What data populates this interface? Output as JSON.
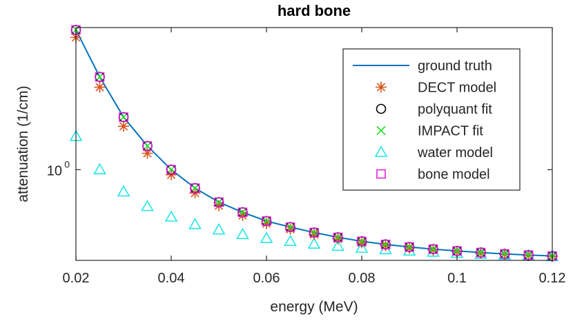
{
  "chart_data": {
    "type": "line",
    "title": "hard bone",
    "xlabel": "energy (MeV)",
    "ylabel": "attenuation (1/cm)",
    "xlim": [
      0.02,
      0.12
    ],
    "ylim": [
      0.4,
      4.2
    ],
    "yscale": "log",
    "grid": false,
    "legend_position": "top-right",
    "x_ticks": [
      0.02,
      0.04,
      0.06,
      0.08,
      0.1,
      0.12
    ],
    "x_tick_labels": [
      "0.02",
      "0.04",
      "0.06",
      "0.08",
      "0.1",
      "0.12"
    ],
    "y_ticks": [
      1
    ],
    "y_tick_labels": [
      {
        "base": "10",
        "exp": "0"
      }
    ],
    "x": [
      0.02,
      0.025,
      0.03,
      0.035,
      0.04,
      0.045,
      0.05,
      0.055,
      0.06,
      0.065,
      0.07,
      0.075,
      0.08,
      0.085,
      0.09,
      0.095,
      0.1,
      0.105,
      0.11,
      0.115,
      0.12
    ],
    "series": [
      {
        "name": "ground truth",
        "marker": "line",
        "color": "#0072BD",
        "values": [
          4.1,
          2.55,
          1.7,
          1.27,
          1.0,
          0.83,
          0.72,
          0.65,
          0.595,
          0.56,
          0.53,
          0.505,
          0.485,
          0.47,
          0.458,
          0.448,
          0.44,
          0.433,
          0.427,
          0.422,
          0.418
        ]
      },
      {
        "name": "DECT model",
        "marker": "asterisk",
        "color": "#D95319",
        "values": [
          3.8,
          2.3,
          1.55,
          1.18,
          0.95,
          0.79,
          0.695,
          0.63,
          0.58,
          0.548,
          0.52,
          0.497,
          0.478,
          0.464,
          0.453,
          0.444,
          0.437,
          0.43,
          0.425,
          0.42,
          0.416
        ]
      },
      {
        "name": "polyquant fit",
        "marker": "circle",
        "color": "#000000",
        "values": [
          4.1,
          2.55,
          1.7,
          1.27,
          1.0,
          0.83,
          0.72,
          0.65,
          0.595,
          0.56,
          0.53,
          0.505,
          0.485,
          0.47,
          0.458,
          0.448,
          0.44,
          0.433,
          0.427,
          0.422,
          0.418
        ]
      },
      {
        "name": "IMPACT fit",
        "marker": "x",
        "color": "#22DD22",
        "values": [
          4.1,
          2.55,
          1.7,
          1.27,
          1.0,
          0.83,
          0.72,
          0.65,
          0.595,
          0.56,
          0.53,
          0.505,
          0.485,
          0.47,
          0.458,
          0.448,
          0.44,
          0.433,
          0.427,
          0.422,
          0.418
        ]
      },
      {
        "name": "water model",
        "marker": "triangle",
        "color": "#22E5E5",
        "values": [
          1.4,
          1.0,
          0.8,
          0.69,
          0.62,
          0.575,
          0.545,
          0.52,
          0.5,
          0.485,
          0.472,
          0.462,
          0.453,
          0.446,
          0.44,
          0.435,
          0.43,
          0.426,
          0.422,
          0.419,
          0.416
        ]
      },
      {
        "name": "bone model",
        "marker": "square",
        "color": "#E020E0",
        "values": [
          4.1,
          2.55,
          1.7,
          1.27,
          1.0,
          0.83,
          0.72,
          0.65,
          0.595,
          0.56,
          0.53,
          0.505,
          0.485,
          0.47,
          0.458,
          0.448,
          0.44,
          0.433,
          0.427,
          0.422,
          0.418
        ]
      }
    ]
  }
}
